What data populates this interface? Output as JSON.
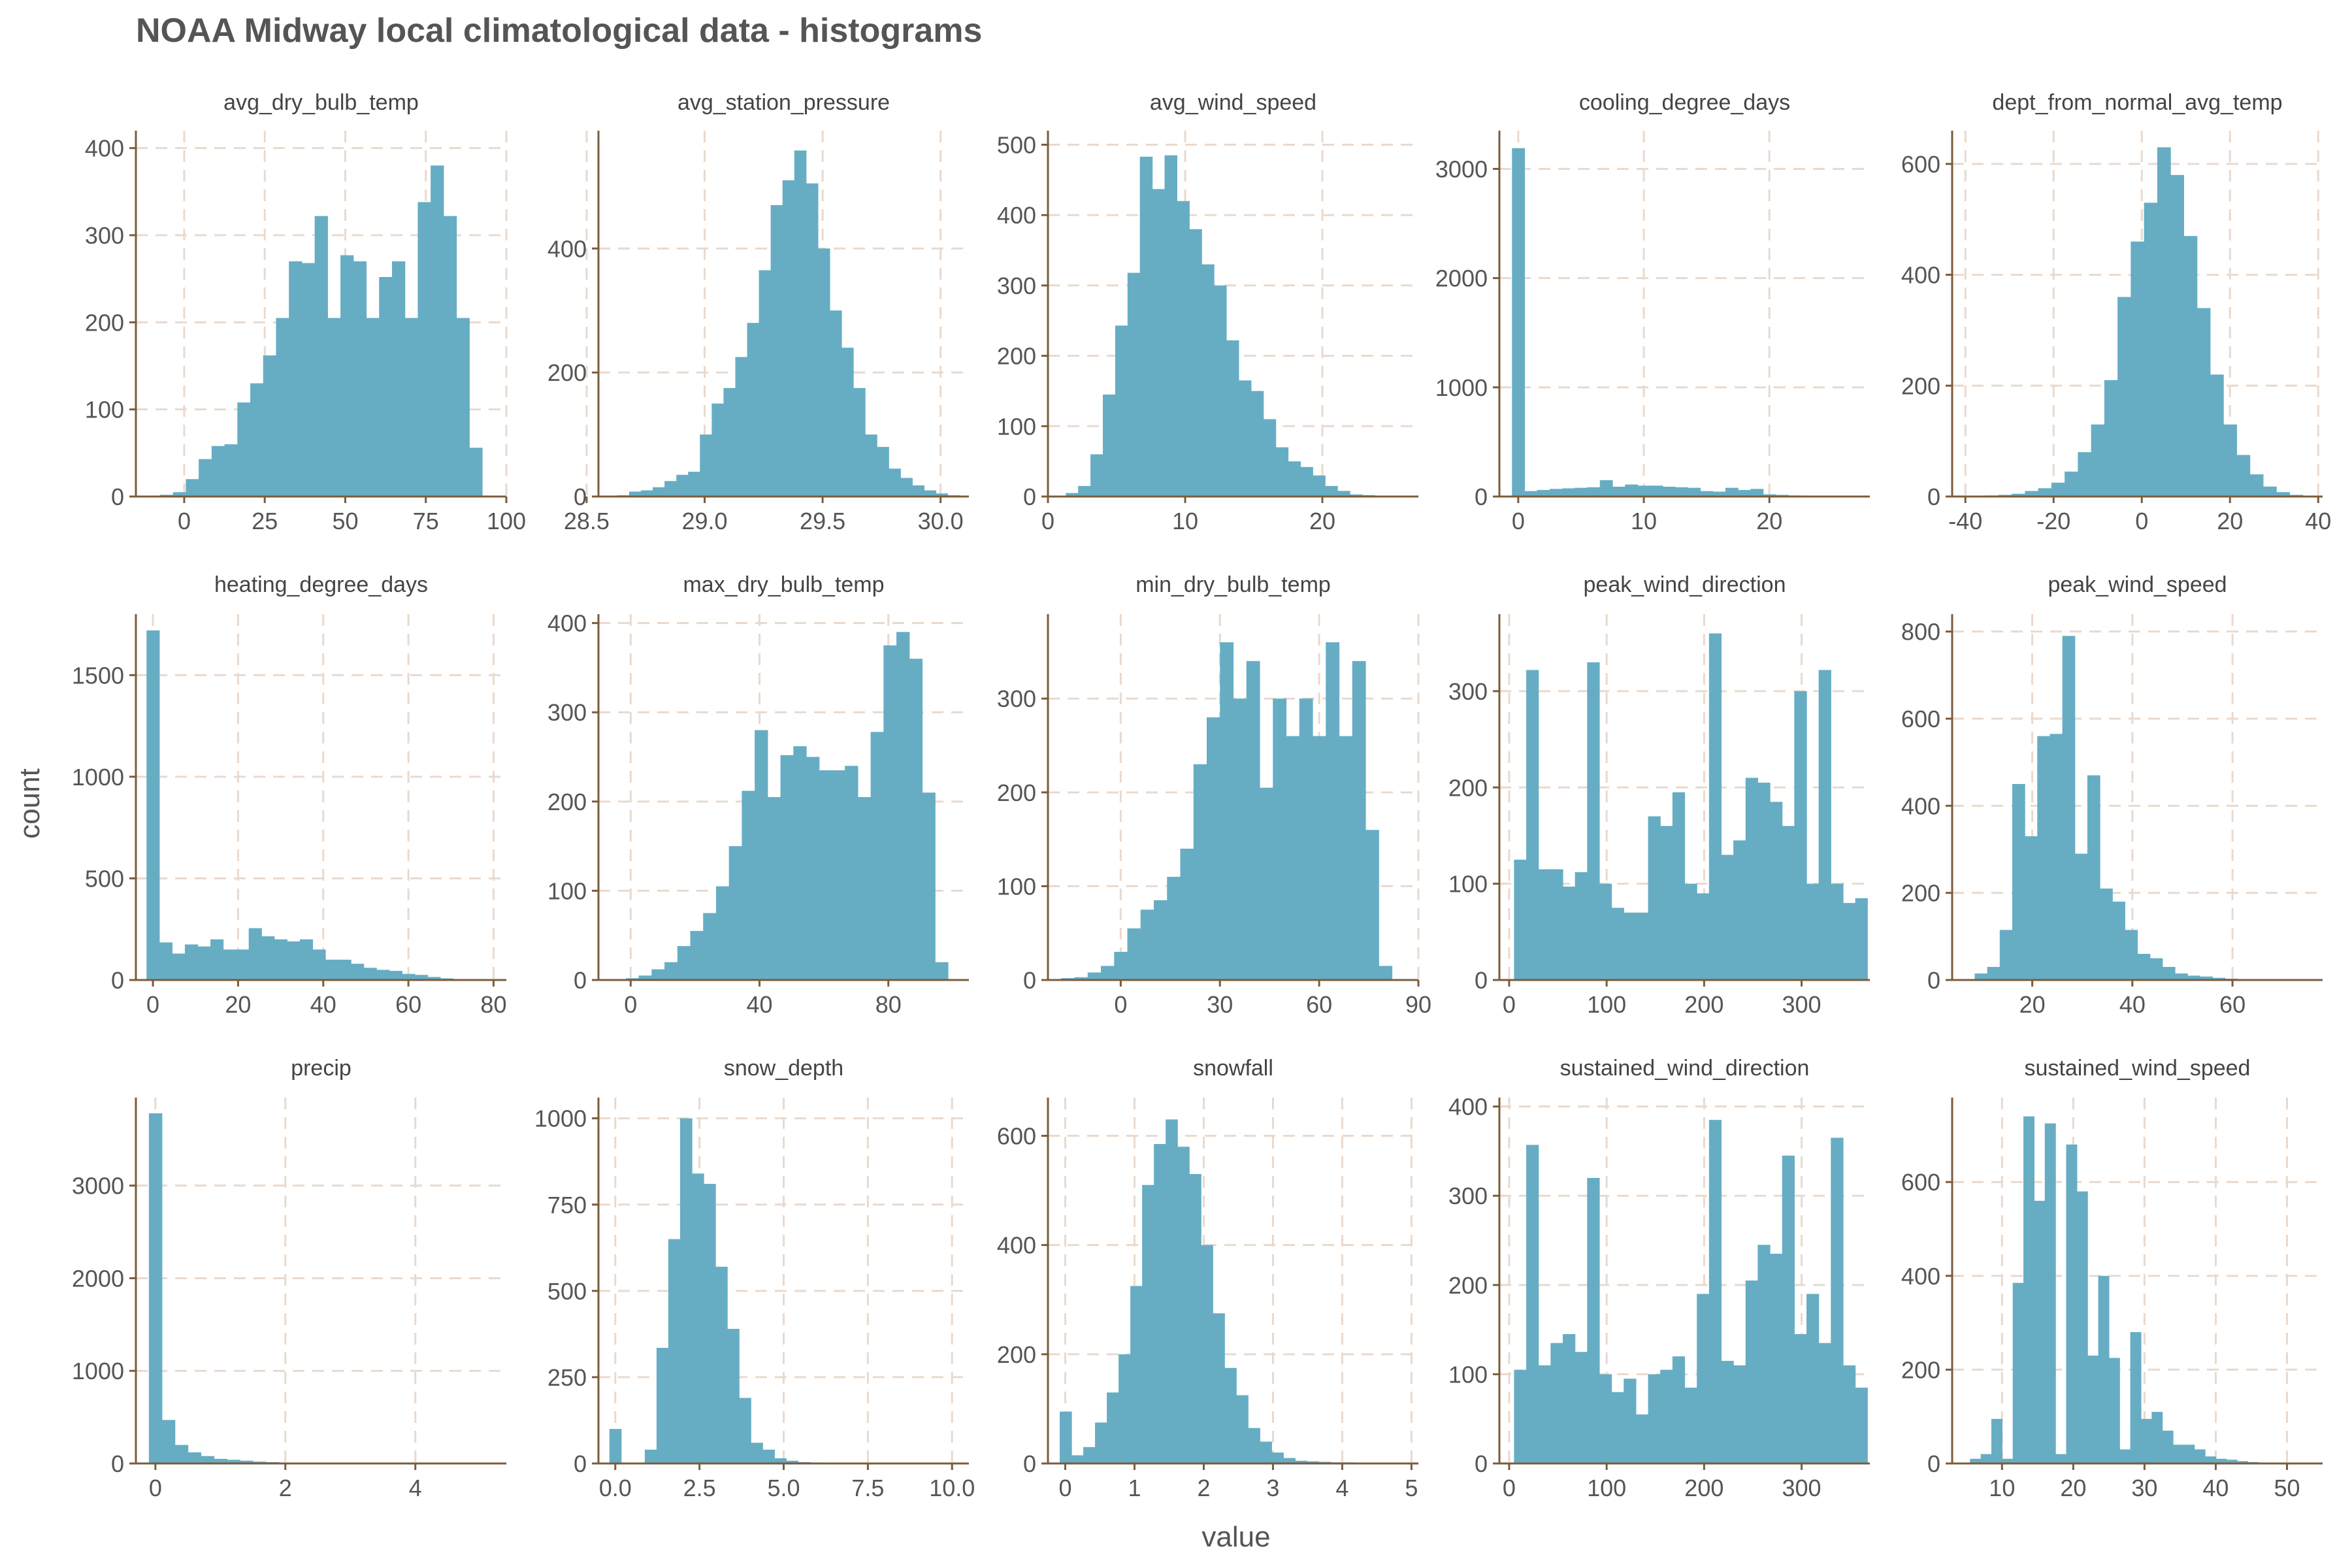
{
  "title": "NOAA Midway local climatological data - histograms",
  "xlabel": "value",
  "ylabel": "count",
  "colors": {
    "bar": "#66adc4",
    "axis": "#7a5c3c",
    "grid": "#ead9cc",
    "text": "#555555"
  },
  "chart_data": [
    {
      "type": "bar",
      "title": "avg_dry_bulb_temp",
      "xlim": [
        -15,
        100
      ],
      "ylim": [
        0,
        420
      ],
      "xticks": [
        0,
        25,
        50,
        75,
        100
      ],
      "yticks": [
        0,
        100,
        200,
        300,
        400
      ],
      "bin_edges": [
        -7.5,
        -3.5,
        0.5,
        4.5,
        8.5,
        12.5,
        16.5,
        20.5,
        24.5,
        28.5,
        32.5,
        36.5,
        40.5,
        44.5,
        48.5,
        52.5,
        56.5,
        60.5,
        64.5,
        68.5,
        72.5,
        76.5,
        80.5,
        84.5,
        88.5,
        92.5
      ],
      "values": [
        2,
        5,
        20,
        43,
        58,
        60,
        108,
        130,
        162,
        205,
        270,
        268,
        322,
        205,
        277,
        270,
        205,
        252,
        270,
        205,
        338,
        380,
        322,
        205,
        56,
        12
      ]
    },
    {
      "type": "bar",
      "title": "avg_station_pressure",
      "xlim": [
        28.55,
        30.12
      ],
      "ylim": [
        0,
        590
      ],
      "xticks": [
        28.5,
        29.0,
        29.5,
        30.0
      ],
      "yticks": [
        0,
        200,
        400
      ],
      "bin_edges": [
        28.63,
        28.68,
        28.73,
        28.78,
        28.83,
        28.88,
        28.93,
        28.98,
        29.03,
        29.08,
        29.13,
        29.18,
        29.23,
        29.28,
        29.33,
        29.38,
        29.43,
        29.48,
        29.53,
        29.58,
        29.63,
        29.68,
        29.73,
        29.78,
        29.83,
        29.88,
        29.93,
        29.98,
        30.03,
        30.08
      ],
      "values": [
        2,
        8,
        10,
        15,
        25,
        35,
        40,
        100,
        150,
        175,
        225,
        280,
        365,
        470,
        510,
        558,
        505,
        400,
        300,
        240,
        175,
        100,
        80,
        45,
        30,
        18,
        10,
        5,
        2
      ]
    },
    {
      "type": "bar",
      "title": "avg_wind_speed",
      "xlim": [
        0,
        27
      ],
      "ylim": [
        0,
        520
      ],
      "xticks": [
        0,
        10,
        20
      ],
      "yticks": [
        0,
        100,
        200,
        300,
        400,
        500
      ],
      "bin_edges": [
        1.3,
        2.2,
        3.1,
        4.0,
        4.9,
        5.8,
        6.7,
        7.6,
        8.5,
        9.4,
        10.3,
        11.2,
        12.1,
        13.0,
        13.9,
        14.8,
        15.7,
        16.6,
        17.5,
        18.4,
        19.3,
        20.2,
        21.1,
        22.0,
        22.9,
        23.8,
        24.7
      ],
      "values": [
        5,
        15,
        60,
        145,
        243,
        318,
        483,
        437,
        485,
        420,
        380,
        330,
        300,
        222,
        165,
        150,
        110,
        70,
        50,
        42,
        30,
        15,
        8,
        3,
        2,
        1
      ]
    },
    {
      "type": "bar",
      "title": "cooling_degree_days",
      "xlim": [
        -1.5,
        28
      ],
      "ylim": [
        0,
        3350
      ],
      "xticks": [
        0,
        10,
        20
      ],
      "yticks": [
        0,
        1000,
        2000,
        3000
      ],
      "bin_edges": [
        -0.5,
        0.5,
        1.5,
        2.5,
        3.5,
        4.5,
        5.5,
        6.5,
        7.5,
        8.5,
        9.5,
        10.5,
        11.5,
        12.5,
        13.5,
        14.5,
        15.5,
        16.5,
        17.5,
        18.5,
        19.5,
        20.5,
        21.5,
        22.5,
        23.5,
        24.5,
        25.5
      ],
      "values": [
        3190,
        50,
        60,
        70,
        75,
        80,
        85,
        150,
        90,
        110,
        100,
        100,
        90,
        85,
        80,
        50,
        45,
        80,
        60,
        70,
        20,
        15,
        10,
        5,
        3,
        2
      ]
    },
    {
      "type": "bar",
      "title": "dept_from_normal_avg_temp",
      "xlim": [
        -43,
        41
      ],
      "ylim": [
        0,
        660
      ],
      "xticks": [
        -40,
        -20,
        0,
        20,
        40
      ],
      "yticks": [
        0,
        200,
        400,
        600
      ],
      "bin_edges": [
        -35.5,
        -32.5,
        -29.5,
        -26.5,
        -23.5,
        -20.5,
        -17.5,
        -14.5,
        -11.5,
        -8.5,
        -5.5,
        -2.5,
        0.5,
        3.5,
        6.5,
        9.5,
        12.5,
        15.5,
        18.5,
        21.5,
        24.5,
        27.5,
        30.5,
        33.5,
        36.5
      ],
      "values": [
        2,
        3,
        5,
        10,
        15,
        25,
        45,
        80,
        130,
        210,
        360,
        460,
        530,
        630,
        580,
        470,
        340,
        220,
        130,
        75,
        40,
        18,
        8,
        3
      ]
    },
    {
      "type": "bar",
      "title": "heating_degree_days",
      "xlim": [
        -4,
        83
      ],
      "ylim": [
        0,
        1800
      ],
      "xticks": [
        0,
        20,
        40,
        60,
        80
      ],
      "yticks": [
        0,
        500,
        1000,
        1500
      ],
      "bin_edges": [
        -1.5,
        1.5,
        4.5,
        7.5,
        10.5,
        13.5,
        16.5,
        19.5,
        22.5,
        25.5,
        28.5,
        31.5,
        34.5,
        37.5,
        40.5,
        43.5,
        46.5,
        49.5,
        52.5,
        55.5,
        58.5,
        61.5,
        64.5,
        67.5,
        70.5,
        73.5,
        76.5
      ],
      "values": [
        1720,
        185,
        130,
        175,
        165,
        200,
        150,
        150,
        255,
        215,
        200,
        190,
        200,
        150,
        100,
        100,
        80,
        60,
        50,
        45,
        30,
        25,
        15,
        8,
        4,
        2
      ]
    },
    {
      "type": "bar",
      "title": "max_dry_bulb_temp",
      "xlim": [
        -10,
        105
      ],
      "ylim": [
        0,
        410
      ],
      "xticks": [
        0,
        40,
        80
      ],
      "yticks": [
        0,
        100,
        200,
        300,
        400
      ],
      "bin_edges": [
        -1.5,
        2.5,
        6.5,
        10.5,
        14.5,
        18.5,
        22.5,
        26.5,
        30.5,
        34.5,
        38.5,
        42.5,
        46.5,
        50.5,
        54.5,
        58.5,
        62.5,
        66.5,
        70.5,
        74.5,
        78.5,
        82.5,
        86.5,
        90.5,
        94.5,
        98.5
      ],
      "values": [
        2,
        5,
        12,
        20,
        38,
        55,
        75,
        105,
        150,
        212,
        280,
        205,
        252,
        262,
        250,
        235,
        235,
        240,
        205,
        278,
        375,
        390,
        360,
        210,
        20,
        5
      ]
    },
    {
      "type": "bar",
      "title": "min_dry_bulb_temp",
      "xlim": [
        -22,
        90
      ],
      "ylim": [
        0,
        390
      ],
      "xticks": [
        0,
        30,
        60,
        90
      ],
      "yticks": [
        0,
        100,
        200,
        300
      ],
      "bin_edges": [
        -18,
        -14,
        -10,
        -6,
        -2,
        2,
        6,
        10,
        14,
        18,
        22,
        26,
        30,
        34,
        38,
        42,
        46,
        50,
        54,
        58,
        62,
        66,
        70,
        74,
        78,
        82
      ],
      "values": [
        2,
        3,
        8,
        15,
        30,
        55,
        75,
        85,
        110,
        140,
        230,
        280,
        360,
        300,
        340,
        205,
        300,
        260,
        300,
        260,
        360,
        260,
        340,
        160,
        15
      ]
    },
    {
      "type": "bar",
      "title": "peak_wind_direction",
      "xlim": [
        -10,
        370
      ],
      "ylim": [
        0,
        380
      ],
      "xticks": [
        0,
        100,
        200,
        300
      ],
      "yticks": [
        0,
        100,
        200,
        300
      ],
      "bin_edges": [
        5,
        17.5,
        30,
        42.5,
        55,
        67.5,
        80,
        92.5,
        105,
        117.5,
        130,
        142.5,
        155,
        167.5,
        180,
        192.5,
        205,
        217.5,
        230,
        242.5,
        255,
        267.5,
        280,
        292.5,
        305,
        317.5,
        330,
        342.5,
        355,
        367.5
      ],
      "values": [
        125,
        322,
        115,
        115,
        97,
        112,
        330,
        100,
        75,
        70,
        70,
        170,
        160,
        195,
        100,
        90,
        360,
        130,
        145,
        210,
        205,
        185,
        160,
        300,
        100,
        322,
        100,
        80,
        85
      ]
    },
    {
      "type": "bar",
      "title": "peak_wind_speed",
      "xlim": [
        4,
        78
      ],
      "ylim": [
        0,
        840
      ],
      "xticks": [
        20,
        40,
        60
      ],
      "yticks": [
        0,
        200,
        400,
        600,
        800
      ],
      "bin_edges": [
        8.5,
        11,
        13.5,
        16,
        18.5,
        21,
        23.5,
        26,
        28.5,
        31,
        33.5,
        36,
        38.5,
        41,
        43.5,
        46,
        48.5,
        51,
        53.5,
        56,
        58.5,
        61,
        63.5,
        66,
        68.5,
        71
      ],
      "values": [
        15,
        30,
        115,
        450,
        330,
        560,
        565,
        790,
        290,
        470,
        210,
        180,
        115,
        60,
        50,
        30,
        15,
        10,
        8,
        5,
        3,
        2,
        1,
        1,
        1
      ]
    },
    {
      "type": "bar",
      "title": "precip",
      "xlim": [
        -0.3,
        5.4
      ],
      "ylim": [
        0,
        3950
      ],
      "xticks": [
        0,
        2,
        4
      ],
      "yticks": [
        0,
        1000,
        2000,
        3000
      ],
      "bin_edges": [
        -0.1,
        0.1,
        0.3,
        0.5,
        0.7,
        0.9,
        1.1,
        1.3,
        1.5,
        1.7,
        1.9,
        2.1,
        2.3,
        2.5,
        2.7,
        2.9,
        3.1,
        3.3,
        3.5,
        3.7,
        3.9,
        4.1,
        4.3,
        4.5,
        4.7,
        4.9,
        5.1
      ],
      "values": [
        3780,
        470,
        200,
        120,
        80,
        50,
        40,
        30,
        20,
        15,
        10,
        8,
        6,
        5,
        4,
        3,
        2,
        2,
        2,
        1,
        1,
        1,
        1,
        1,
        1,
        1
      ]
    },
    {
      "type": "bar",
      "title": "snow_depth",
      "xlim": [
        -0.5,
        10.5
      ],
      "ylim": [
        0,
        1060
      ],
      "xticks": [
        0.0,
        2.5,
        5.0,
        7.5,
        10.0
      ],
      "yticks": [
        0,
        250,
        500,
        750,
        1000
      ],
      "bin_edges": [
        -0.175,
        0.175,
        0.525,
        0.875,
        1.225,
        1.575,
        1.925,
        2.275,
        2.625,
        2.975,
        3.325,
        3.675,
        4.025,
        4.375,
        4.725,
        5.075,
        5.425,
        5.775,
        6.125,
        6.475,
        6.825,
        7.175,
        7.525,
        7.875,
        8.225,
        8.575,
        8.925,
        9.275,
        9.625,
        9.975,
        10.325
      ],
      "values": [
        100,
        0,
        0,
        40,
        335,
        650,
        1000,
        840,
        810,
        570,
        390,
        190,
        60,
        40,
        15,
        8,
        4,
        3,
        2,
        1,
        1,
        1,
        1,
        1,
        1,
        1,
        1,
        1,
        1,
        1
      ]
    },
    {
      "type": "bar",
      "title": "snowfall",
      "xlim": [
        -0.25,
        5.1
      ],
      "ylim": [
        0,
        670
      ],
      "xticks": [
        0,
        1,
        2,
        3,
        4,
        5
      ],
      "yticks": [
        0,
        200,
        400,
        600
      ],
      "bin_edges": [
        -0.08,
        0.09,
        0.26,
        0.43,
        0.6,
        0.77,
        0.94,
        1.11,
        1.28,
        1.45,
        1.62,
        1.79,
        1.96,
        2.13,
        2.3,
        2.47,
        2.64,
        2.81,
        2.98,
        3.15,
        3.32,
        3.49,
        3.66,
        3.83,
        4.0,
        4.17,
        4.34,
        4.51,
        4.68,
        4.85,
        5.02
      ],
      "values": [
        95,
        15,
        30,
        75,
        130,
        200,
        325,
        510,
        585,
        630,
        580,
        530,
        400,
        275,
        175,
        125,
        65,
        40,
        20,
        10,
        5,
        4,
        3,
        2,
        2,
        1,
        1,
        1,
        1,
        1
      ]
    },
    {
      "type": "bar",
      "title": "sustained_wind_direction",
      "xlim": [
        -10,
        370
      ],
      "ylim": [
        0,
        410
      ],
      "xticks": [
        0,
        100,
        200,
        300
      ],
      "yticks": [
        0,
        100,
        200,
        300,
        400
      ],
      "bin_edges": [
        5,
        17.5,
        30,
        42.5,
        55,
        67.5,
        80,
        92.5,
        105,
        117.5,
        130,
        142.5,
        155,
        167.5,
        180,
        192.5,
        205,
        217.5,
        230,
        242.5,
        255,
        267.5,
        280,
        292.5,
        305,
        317.5,
        330,
        342.5,
        355,
        367.5
      ],
      "values": [
        105,
        357,
        110,
        135,
        145,
        125,
        320,
        100,
        80,
        95,
        55,
        100,
        105,
        120,
        85,
        190,
        385,
        115,
        110,
        205,
        245,
        235,
        345,
        145,
        190,
        135,
        365,
        110,
        85
      ]
    },
    {
      "type": "bar",
      "title": "sustained_wind_speed",
      "xlim": [
        3,
        55
      ],
      "ylim": [
        0,
        780
      ],
      "xticks": [
        10,
        20,
        30,
        40,
        50
      ],
      "yticks": [
        0,
        200,
        400,
        600
      ],
      "bin_edges": [
        5.5,
        7,
        8.5,
        10,
        11.5,
        13,
        14.5,
        16,
        17.5,
        19,
        20.5,
        22,
        23.5,
        25,
        26.5,
        28,
        29.5,
        31,
        32.5,
        34,
        35.5,
        37,
        38.5,
        40,
        41.5,
        43,
        44.5,
        46,
        47.5,
        49,
        50.5,
        52
      ],
      "values": [
        10,
        20,
        95,
        10,
        385,
        740,
        560,
        725,
        20,
        680,
        580,
        230,
        400,
        225,
        30,
        280,
        95,
        110,
        70,
        40,
        40,
        30,
        15,
        10,
        8,
        5,
        3,
        2,
        2,
        1,
        1
      ]
    }
  ]
}
